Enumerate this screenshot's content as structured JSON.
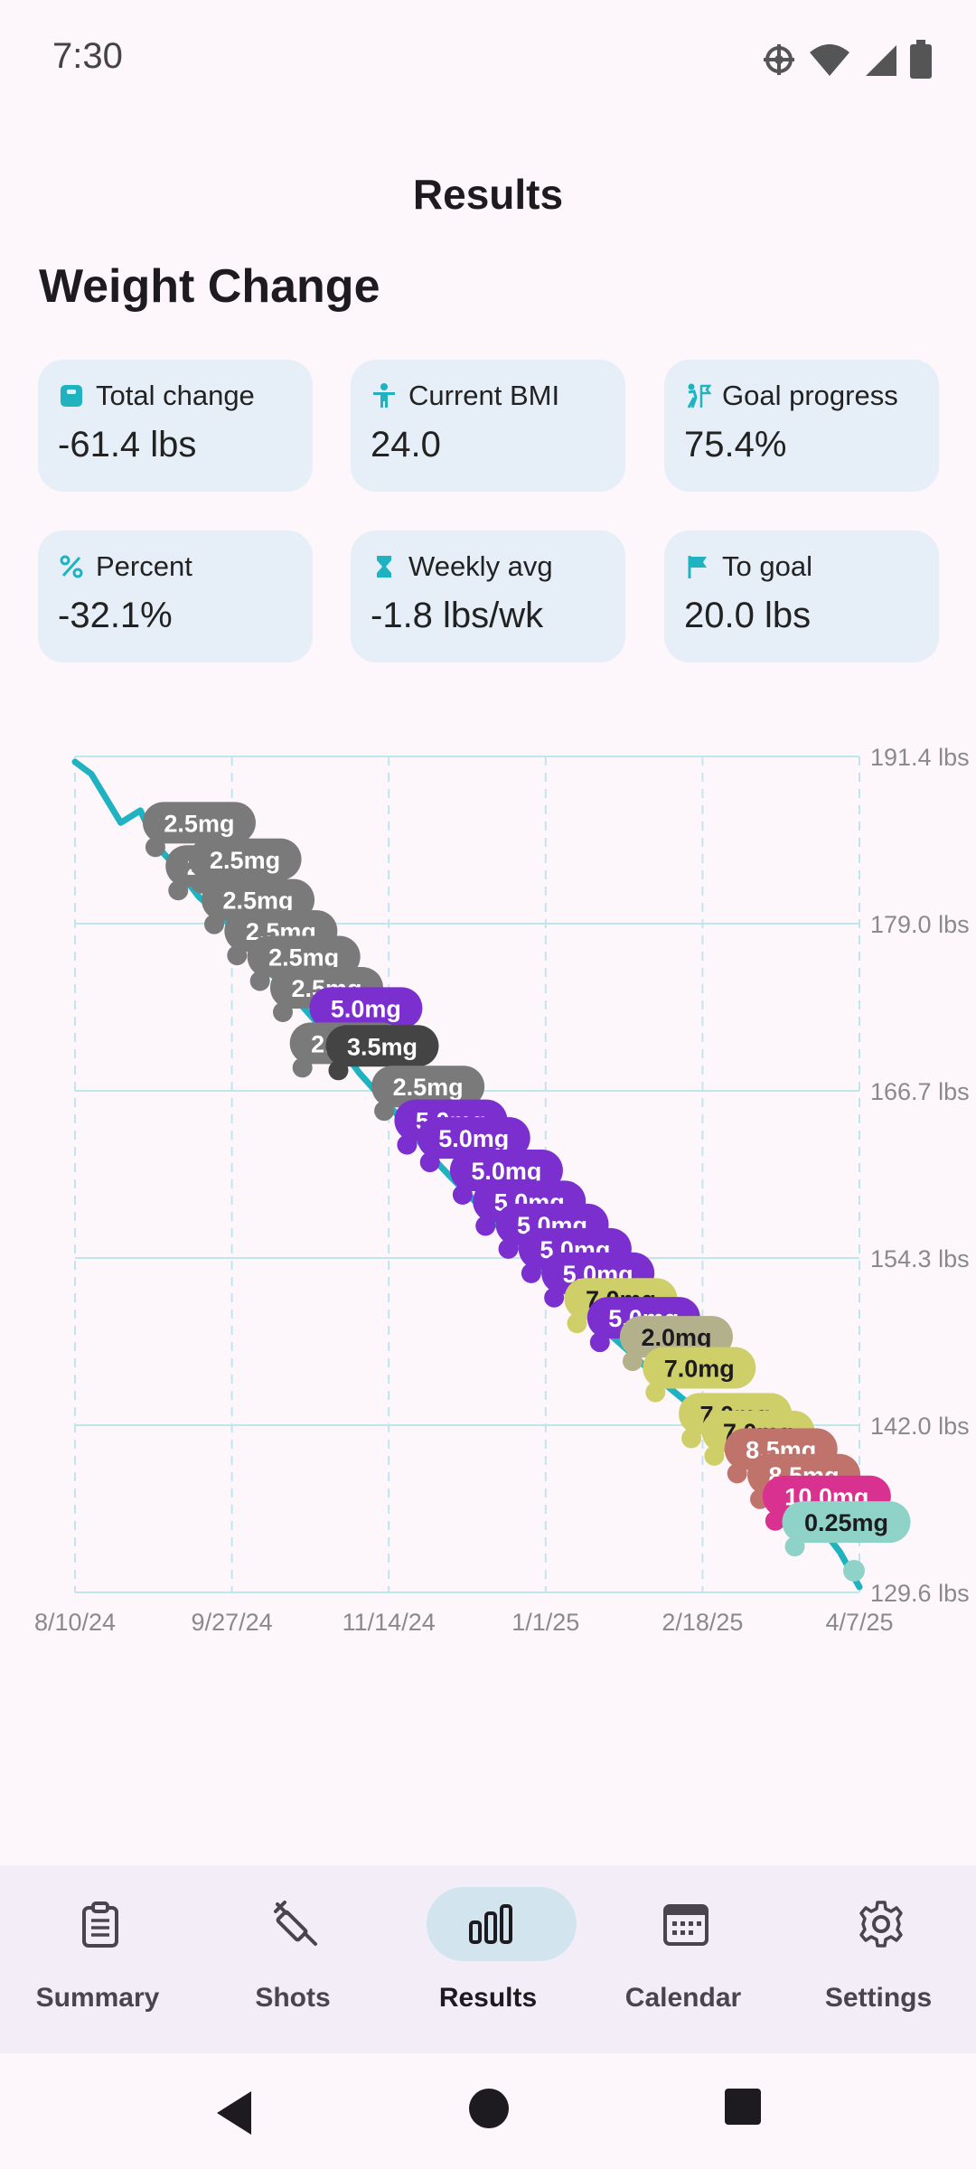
{
  "status": {
    "time": "7:30"
  },
  "app": {
    "title": "Results"
  },
  "section": {
    "title": "Weight Change"
  },
  "stats": [
    {
      "label": "Total change",
      "value": "-61.4 lbs",
      "icon": "scale-icon"
    },
    {
      "label": "Current BMI",
      "value": "24.0",
      "icon": "person-icon"
    },
    {
      "label": "Goal progress",
      "value": "75.4%",
      "icon": "hiking-goal-icon"
    },
    {
      "label": "Percent",
      "value": "-32.1%",
      "icon": "percent-icon"
    },
    {
      "label": "Weekly avg",
      "value": "-1.8 lbs/wk",
      "icon": "hourglass-icon"
    },
    {
      "label": "To goal",
      "value": "20.0 lbs",
      "icon": "flag-icon"
    }
  ],
  "colors": {
    "line": "#1fb3c2",
    "grid": "#bfe6ec",
    "card": "#e6eff7",
    "accent_pill": "#d2e4ee"
  },
  "chart_data": {
    "type": "line",
    "x_ticks": [
      "8/10/24",
      "9/27/24",
      "11/14/24",
      "1/1/25",
      "2/18/25",
      "4/7/25"
    ],
    "y_ticks": [
      "191.4 lbs",
      "179.0 lbs",
      "166.7 lbs",
      "154.3 lbs",
      "142.0 lbs",
      "129.6 lbs"
    ],
    "ylim": [
      129.6,
      191.4
    ],
    "xlim": [
      "8/10/24",
      "4/7/25"
    ],
    "grid": true,
    "series": [
      {
        "x": [
          "8/10/24",
          "8/15/24",
          "8/24/24",
          "8/30/24",
          "9/4/24",
          "9/10/24",
          "9/17/24",
          "9/24/24",
          "10/1/24",
          "10/8/24",
          "10/15/24",
          "10/22/24",
          "10/29/24",
          "11/5/24",
          "11/12/24",
          "11/19/24",
          "11/26/24",
          "12/3/24",
          "12/10/24",
          "12/17/24",
          "12/24/24",
          "12/31/24",
          "1/7/25",
          "1/14/25",
          "1/21/25",
          "1/28/25",
          "2/4/25",
          "2/11/25",
          "2/18/25",
          "2/25/25",
          "3/4/25",
          "3/11/25",
          "3/18/25",
          "3/25/25",
          "4/1/25",
          "4/7/25"
        ],
        "y": [
          191.0,
          190.1,
          186.5,
          187.4,
          184.8,
          183.2,
          181.0,
          179.6,
          177.5,
          175.6,
          173.9,
          172.0,
          170.3,
          168.0,
          166.1,
          164.3,
          162.1,
          160.3,
          158.6,
          156.8,
          155.1,
          153.4,
          151.9,
          150.2,
          148.6,
          147.1,
          145.5,
          144.1,
          142.7,
          141.3,
          139.8,
          138.4,
          136.9,
          134.8,
          132.6,
          130.0
        ]
      }
    ],
    "dose_labels": [
      {
        "x": "9/17/24",
        "y": 186.5,
        "label": "2.5mg",
        "color": "#7a7a7a"
      },
      {
        "x": "9/24/24",
        "y": 183.3,
        "label": "2.5mg",
        "color": "#7a7a7a"
      },
      {
        "x": "10/1/24",
        "y": 183.8,
        "label": "2.5mg",
        "color": "#7a7a7a"
      },
      {
        "x": "10/5/24",
        "y": 180.8,
        "label": "2.5mg",
        "color": "#7a7a7a"
      },
      {
        "x": "10/12/24",
        "y": 178.5,
        "label": "2.5mg",
        "color": "#7a7a7a"
      },
      {
        "x": "10/19/24",
        "y": 176.6,
        "label": "2.5mg",
        "color": "#7a7a7a"
      },
      {
        "x": "10/26/24",
        "y": 174.3,
        "label": "2.5mg",
        "color": "#7a7a7a"
      },
      {
        "x": "11/7/24",
        "y": 172.8,
        "label": "5.0mg",
        "color": "#7b2fce"
      },
      {
        "x": "11/1/24",
        "y": 170.2,
        "label": "2.5mg",
        "color": "#7a7a7a"
      },
      {
        "x": "11/12/24",
        "y": 170.0,
        "label": "3.5mg",
        "color": "#444444"
      },
      {
        "x": "11/26/24",
        "y": 167.0,
        "label": "2.5mg",
        "color": "#7a7a7a"
      },
      {
        "x": "12/3/24",
        "y": 164.5,
        "label": "5.0mg",
        "color": "#7b2fce"
      },
      {
        "x": "12/10/24",
        "y": 163.2,
        "label": "5.0mg",
        "color": "#7b2fce"
      },
      {
        "x": "12/20/24",
        "y": 160.8,
        "label": "5.0mg",
        "color": "#7b2fce"
      },
      {
        "x": "12/27/24",
        "y": 158.5,
        "label": "5.0mg",
        "color": "#7b2fce"
      },
      {
        "x": "1/3/25",
        "y": 156.8,
        "label": "5.0mg",
        "color": "#7b2fce"
      },
      {
        "x": "1/10/25",
        "y": 155.0,
        "label": "5.0mg",
        "color": "#7b2fce"
      },
      {
        "x": "1/17/25",
        "y": 153.2,
        "label": "5.0mg",
        "color": "#7b2fce"
      },
      {
        "x": "1/24/25",
        "y": 151.3,
        "label": "7.0mg",
        "color": "#cfcf6a"
      },
      {
        "x": "1/31/25",
        "y": 149.9,
        "label": "5.0mg",
        "color": "#7b2fce"
      },
      {
        "x": "2/10/25",
        "y": 148.5,
        "label": "2.0mg",
        "color": "#b3b08c"
      },
      {
        "x": "2/17/25",
        "y": 146.2,
        "label": "7.0mg",
        "color": "#cfcf6a"
      },
      {
        "x": "2/28/25",
        "y": 142.8,
        "label": "7.0mg",
        "color": "#cfcf6a"
      },
      {
        "x": "3/7/25",
        "y": 141.5,
        "label": "7.0mg",
        "color": "#cfcf6a"
      },
      {
        "x": "3/14/25",
        "y": 140.2,
        "label": "8.5mg",
        "color": "#c0736b"
      },
      {
        "x": "3/21/25",
        "y": 138.3,
        "label": "8.5mg",
        "color": "#c0736b"
      },
      {
        "x": "3/28/25",
        "y": 136.7,
        "label": "10.0mg",
        "color": "#d8318f"
      },
      {
        "x": "4/3/25",
        "y": 134.8,
        "label": "0.25mg",
        "color": "#8fd3c8"
      }
    ]
  },
  "nav": {
    "items": [
      {
        "label": "Summary",
        "icon": "clipboard-icon",
        "active": false
      },
      {
        "label": "Shots",
        "icon": "syringe-icon",
        "active": false
      },
      {
        "label": "Results",
        "icon": "bar-chart-icon",
        "active": true
      },
      {
        "label": "Calendar",
        "icon": "calendar-icon",
        "active": false
      },
      {
        "label": "Settings",
        "icon": "gear-icon",
        "active": false
      }
    ]
  }
}
